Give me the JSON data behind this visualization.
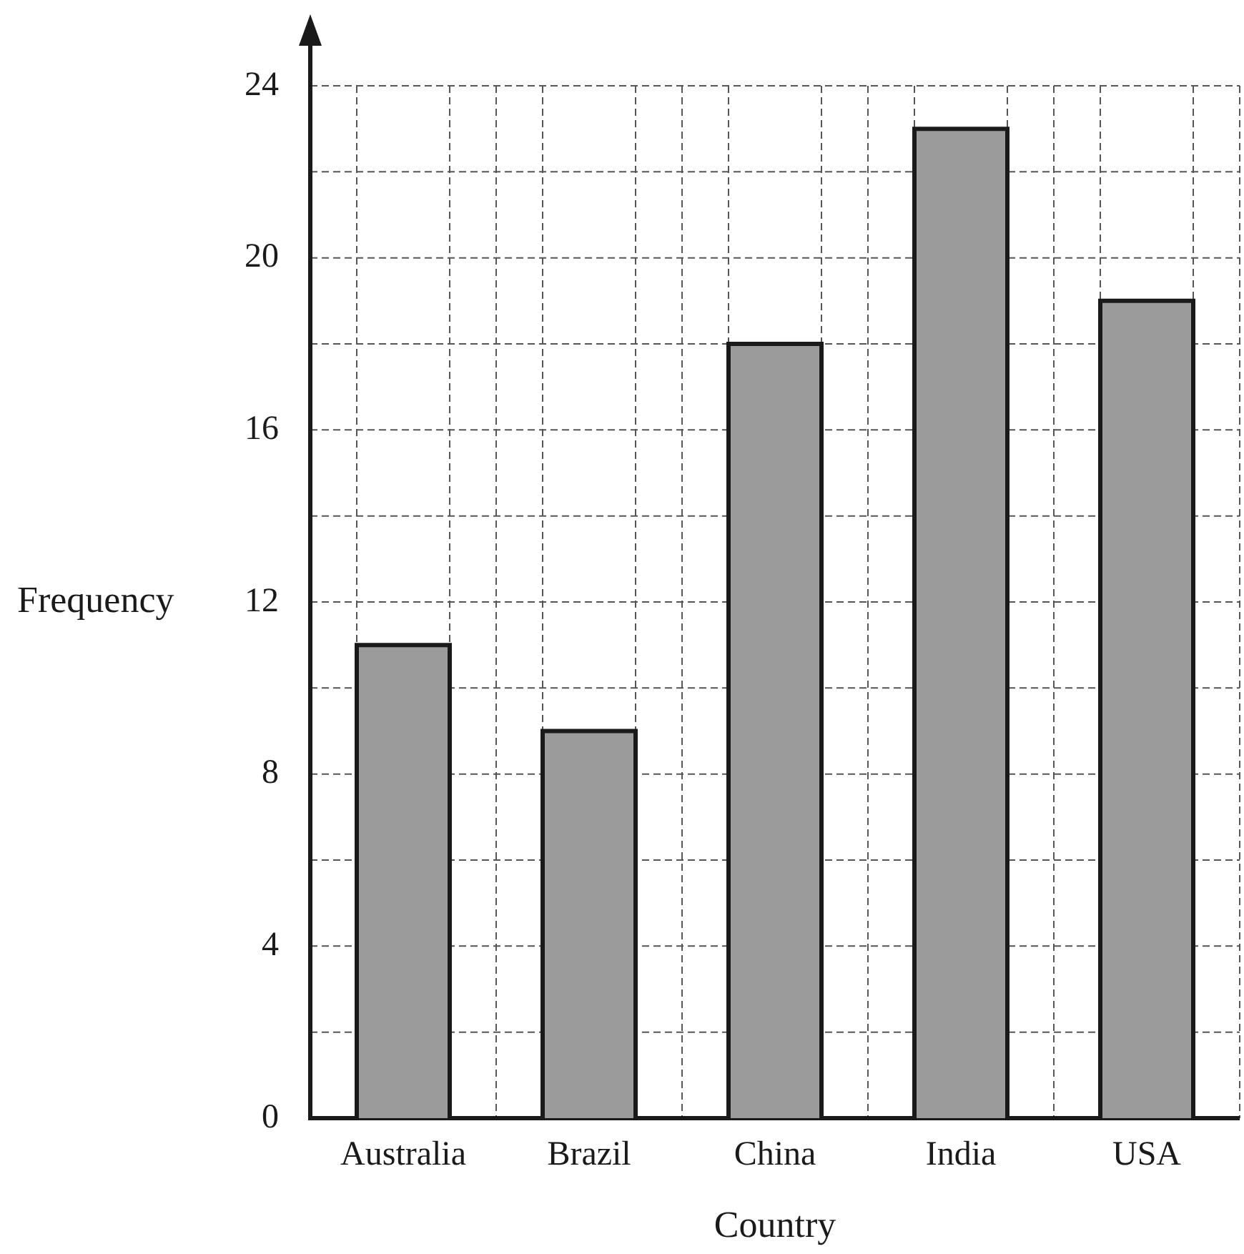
{
  "chart_data": {
    "type": "bar",
    "xlabel": "Country",
    "ylabel": "Frequency",
    "categories": [
      "Australia",
      "Brazil",
      "China",
      "India",
      "USA"
    ],
    "values": [
      11,
      9,
      18,
      23,
      19
    ],
    "color": "#9b9b9b",
    "ylim": [
      0,
      24
    ],
    "yticks": [
      0,
      {
        "value": 2,
        "label": null
      },
      4,
      {
        "value": 6,
        "label": null
      },
      8,
      {
        "value": 10,
        "label": null
      },
      12,
      {
        "value": 14,
        "label": null
      },
      16,
      {
        "value": 18,
        "label": null
      },
      20,
      {
        "value": 22,
        "label": null
      },
      24
    ],
    "grid": true,
    "legend": false
  }
}
